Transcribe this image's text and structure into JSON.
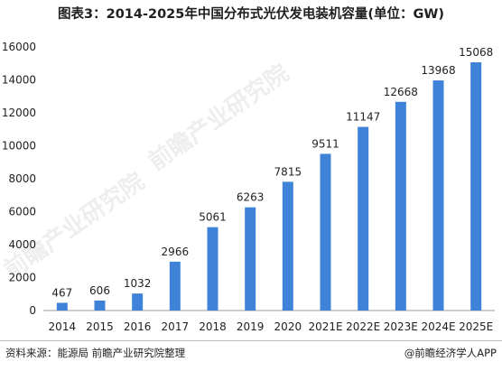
{
  "title": "图表3：2014-2025年中国分布式光伏发电装机容量(单位：GW)",
  "source": "资料来源：能源局 前瞻产业研究院整理",
  "brand": "@前瞻经济学人APP",
  "watermark": "前瞻产业研究院",
  "colors": {
    "bar": "#3f83d9",
    "axis": "#9e9e9e",
    "text": "#1f1f1f"
  },
  "chart_data": {
    "type": "bar",
    "title": "图表3：2014-2025年中国分布式光伏发电装机容量(单位：GW)",
    "xlabel": "",
    "ylabel": "",
    "categories": [
      "2014",
      "2015",
      "2016",
      "2017",
      "2018",
      "2019",
      "2020",
      "2021E",
      "2022E",
      "2023E",
      "2024E",
      "2025E"
    ],
    "values": [
      467,
      606,
      1032,
      2966,
      5061,
      6263,
      7815,
      9511,
      11147,
      12668,
      13968,
      15068
    ],
    "ylim": [
      0,
      16000
    ],
    "yticks": [
      0,
      2000,
      4000,
      6000,
      8000,
      10000,
      12000,
      14000,
      16000
    ],
    "grid": false,
    "legend": "none"
  }
}
